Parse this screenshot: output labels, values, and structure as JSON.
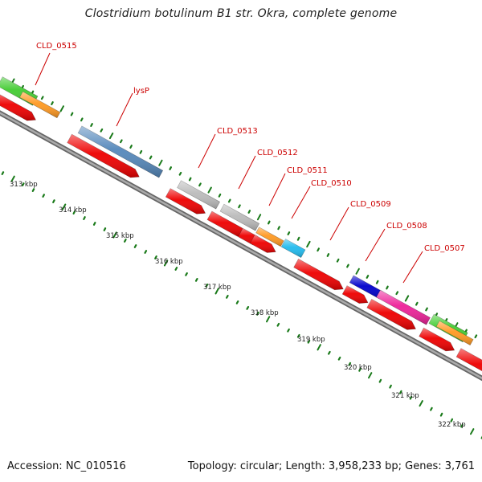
{
  "title": "Clostridium botulinum B1 str. Okra, complete genome",
  "footer": {
    "accession": "Accession: NC_010516",
    "summary": "Topology: circular; Length: 3,958,233 bp; Genes: 3,761"
  },
  "colors": {
    "backbone": "#8a8a8a",
    "tick": "#1a7a1a",
    "label": "#cc0000",
    "red": "#ee0000",
    "green": "#44cc33",
    "orange": "#ff9922",
    "steelblue": "#5588bb",
    "gray": "#bbbbbb",
    "cyan": "#22bbee",
    "blue": "#0000cc",
    "pink": "#ee2299"
  },
  "scale_labels": [
    "313 kbp",
    "314 kbp",
    "315 kbp",
    "316 kbp",
    "317 kbp",
    "318 kbp",
    "319 kbp",
    "320 kbp",
    "321 kbp",
    "322 kbp"
  ],
  "gene_labels": [
    "CLD_0515",
    "lysP",
    "CLD_0513",
    "CLD_0512",
    "CLD_0511",
    "CLD_0510",
    "CLD_0509",
    "CLD_0508",
    "CLD_0507"
  ]
}
